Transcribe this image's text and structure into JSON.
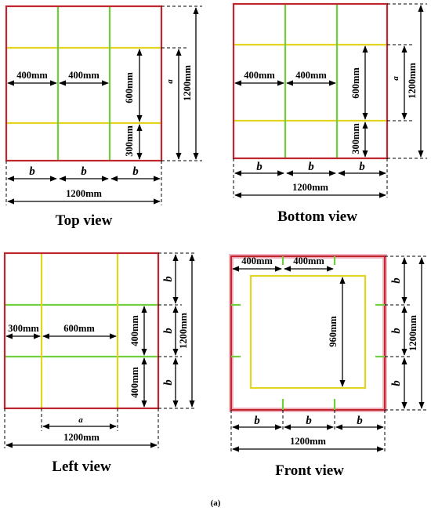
{
  "colors": {
    "frame": "#c0262d",
    "green_line": "#6fcf3c",
    "yellow_line": "#e3d421",
    "front_face_border": "#f2b8c6"
  },
  "views": {
    "top": {
      "title": "Top view",
      "dims": [
        "400mm",
        "400mm",
        "600mm",
        "300mm",
        "1200mm",
        "1200mm"
      ],
      "vars": [
        "a",
        "b",
        "b",
        "b"
      ]
    },
    "bottom": {
      "title": "Bottom view",
      "dims": [
        "400mm",
        "400mm",
        "600mm",
        "300mm",
        "1200mm",
        "1200mm"
      ],
      "vars": [
        "a",
        "b",
        "b",
        "b"
      ]
    },
    "left": {
      "title": "Left view",
      "dims": [
        "300mm",
        "600mm",
        "400mm",
        "400mm",
        "1200mm",
        "1200mm"
      ],
      "vars": [
        "a",
        "b",
        "b",
        "b"
      ]
    },
    "front": {
      "title": "Front view",
      "dims": [
        "400mm",
        "400mm",
        "960mm",
        "1200mm",
        "1200mm"
      ],
      "vars": [
        "b",
        "b",
        "b",
        "b",
        "b",
        "b"
      ]
    }
  },
  "caption": "(a)"
}
